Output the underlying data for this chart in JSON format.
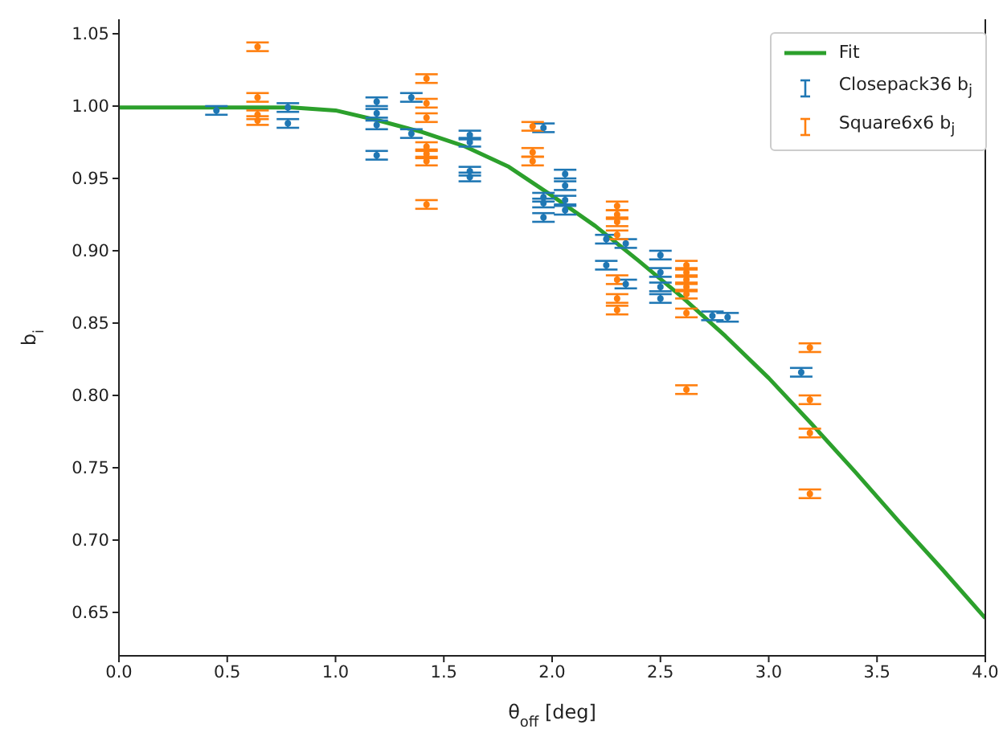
{
  "chart_data": {
    "type": "scatter",
    "xlabel": "θ$_{off}$ [deg]",
    "ylabel": "b$_{i}$",
    "xlim": [
      0,
      4
    ],
    "ylim": [
      0.62,
      1.06
    ],
    "xticks": [
      {
        "value": 0,
        "label": "0.0"
      },
      {
        "value": 0.5,
        "label": "0.5"
      },
      {
        "value": 1,
        "label": "1.0"
      },
      {
        "value": 1.5,
        "label": "1.5"
      },
      {
        "value": 2,
        "label": "2.0"
      },
      {
        "value": 2.5,
        "label": "2.5"
      },
      {
        "value": 3,
        "label": "3.0"
      },
      {
        "value": 3.5,
        "label": "3.5"
      },
      {
        "value": 4,
        "label": "4.0"
      }
    ],
    "yticks": [
      {
        "value": 0.65,
        "label": "0.65"
      },
      {
        "value": 0.7,
        "label": "0.70"
      },
      {
        "value": 0.75,
        "label": "0.75"
      },
      {
        "value": 0.8,
        "label": "0.80"
      },
      {
        "value": 0.85,
        "label": "0.85"
      },
      {
        "value": 0.9,
        "label": "0.90"
      },
      {
        "value": 0.95,
        "label": "0.95"
      },
      {
        "value": 1,
        "label": "1.00"
      },
      {
        "value": 1.05,
        "label": "1.05"
      }
    ],
    "grid": false,
    "legend": "top right",
    "series": [
      {
        "name": "Fit",
        "type": "line",
        "marker": "none",
        "color": "#2ca02c",
        "x": [
          0,
          0.4,
          0.8,
          1.0,
          1.2,
          1.4,
          1.6,
          1.8,
          2.0,
          2.2,
          2.4,
          2.6,
          2.8,
          3.0,
          3.2,
          3.4,
          3.6,
          3.8,
          4.0
        ],
        "values": [
          0.999,
          0.999,
          0.999,
          0.997,
          0.99,
          0.982,
          0.972,
          0.958,
          0.938,
          0.917,
          0.893,
          0.868,
          0.841,
          0.812,
          0.78,
          0.747,
          0.713,
          0.68,
          0.646
        ]
      },
      {
        "name": "Closepack36 b$_{j}$",
        "marker": "circle",
        "color": "#1f77b4",
        "x": [
          0.45,
          0.78,
          0.78,
          1.19,
          1.19,
          1.19,
          1.19,
          1.35,
          1.35,
          1.62,
          1.62,
          1.62,
          1.62,
          1.96,
          1.96,
          1.96,
          1.96,
          2.06,
          2.06,
          2.06,
          2.06,
          2.25,
          2.25,
          2.34,
          2.34,
          2.5,
          2.5,
          2.5,
          2.5,
          2.74,
          2.81,
          3.15
        ],
        "values": [
          0.997,
          0.999,
          0.988,
          1.003,
          0.995,
          0.987,
          0.966,
          1.006,
          0.981,
          0.98,
          0.975,
          0.955,
          0.951,
          0.985,
          0.937,
          0.933,
          0.923,
          0.953,
          0.945,
          0.935,
          0.928,
          0.908,
          0.89,
          0.905,
          0.877,
          0.897,
          0.885,
          0.875,
          0.867,
          0.855,
          0.854,
          0.816
        ],
        "errors": [
          0.003,
          0.003,
          0.003,
          0.003,
          0.003,
          0.003,
          0.003,
          0.003,
          0.003,
          0.003,
          0.003,
          0.003,
          0.003,
          0.003,
          0.003,
          0.003,
          0.003,
          0.003,
          0.003,
          0.003,
          0.003,
          0.003,
          0.003,
          0.003,
          0.003,
          0.003,
          0.003,
          0.003,
          0.003,
          0.003,
          0.003,
          0.003
        ]
      },
      {
        "name": "Square6x6 b$_{j}$",
        "marker": "circle",
        "color": "#ff7f0e",
        "x": [
          0.64,
          0.64,
          0.64,
          0.64,
          1.42,
          1.42,
          1.42,
          1.42,
          1.42,
          1.42,
          1.42,
          1.91,
          1.91,
          1.91,
          2.3,
          2.3,
          2.3,
          2.3,
          2.3,
          2.3,
          2.3,
          2.62,
          2.62,
          2.62,
          2.62,
          2.62,
          2.62,
          2.62,
          3.19,
          3.19,
          3.19,
          3.19
        ],
        "values": [
          1.041,
          1.006,
          0.994,
          0.99,
          1.019,
          1.002,
          0.992,
          0.972,
          0.967,
          0.962,
          0.932,
          0.986,
          0.968,
          0.962,
          0.931,
          0.925,
          0.92,
          0.911,
          0.88,
          0.867,
          0.859,
          0.89,
          0.885,
          0.88,
          0.875,
          0.87,
          0.857,
          0.804,
          0.833,
          0.797,
          0.774,
          0.732
        ],
        "errors": [
          0.003,
          0.003,
          0.003,
          0.003,
          0.003,
          0.003,
          0.003,
          0.003,
          0.003,
          0.003,
          0.003,
          0.003,
          0.003,
          0.003,
          0.003,
          0.003,
          0.003,
          0.003,
          0.003,
          0.003,
          0.003,
          0.003,
          0.003,
          0.003,
          0.003,
          0.003,
          0.003,
          0.003,
          0.003,
          0.003,
          0.003,
          0.003
        ]
      }
    ]
  }
}
